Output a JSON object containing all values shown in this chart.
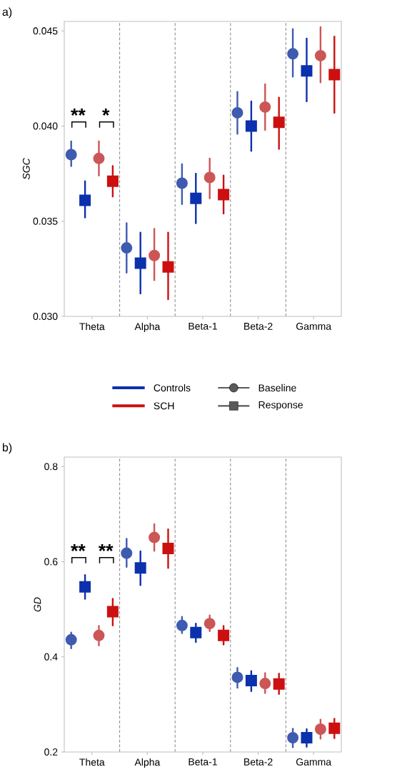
{
  "chart_data": [
    {
      "type": "scatter",
      "title": "a)",
      "ylabel": "SGC",
      "categories": [
        "Theta",
        "Alpha",
        "Beta-1",
        "Beta-2",
        "Gamma"
      ],
      "ylim": [
        0.03,
        0.0455
      ],
      "yticks": [
        {
          "value": 0.03,
          "label": "0.030"
        },
        {
          "value": 0.035,
          "label": "0.035"
        },
        {
          "value": 0.04,
          "label": "0.040"
        },
        {
          "value": 0.045,
          "label": "0.045"
        }
      ],
      "grid": "x",
      "series": [
        {
          "color": "#3f5bb0",
          "marker": "circle",
          "values": [
            0.0385,
            0.0336,
            0.037,
            0.0407,
            0.0438
          ],
          "errors": [
            [
              0.0379,
              0.0392
            ],
            [
              0.0323,
              0.0349
            ],
            [
              0.0359,
              0.038
            ],
            [
              0.0396,
              0.0418
            ],
            [
              0.0426,
              0.0451
            ]
          ]
        },
        {
          "color": "#0b31ad",
          "marker": "square",
          "values": [
            0.0361,
            0.0328,
            0.0362,
            0.04,
            0.0429
          ],
          "errors": [
            [
              0.0352,
              0.0371
            ],
            [
              0.0312,
              0.0344
            ],
            [
              0.0349,
              0.0375
            ],
            [
              0.0387,
              0.0413
            ],
            [
              0.0413,
              0.0446
            ]
          ]
        },
        {
          "color": "#cc5656",
          "marker": "circle",
          "values": [
            0.0383,
            0.0332,
            0.0373,
            0.041,
            0.0437
          ],
          "errors": [
            [
              0.0374,
              0.0392
            ],
            [
              0.0319,
              0.0346
            ],
            [
              0.0362,
              0.0383
            ],
            [
              0.0398,
              0.0422
            ],
            [
              0.0423,
              0.0452
            ]
          ]
        },
        {
          "color": "#cc1010",
          "marker": "square",
          "values": [
            0.0371,
            0.0326,
            0.0364,
            0.0402,
            0.0427
          ],
          "errors": [
            [
              0.0363,
              0.0379
            ],
            [
              0.0309,
              0.0344
            ],
            [
              0.0354,
              0.0374
            ],
            [
              0.0388,
              0.0415
            ],
            [
              0.0407,
              0.0447
            ]
          ]
        }
      ],
      "annotations": [
        "**",
        "*",
        "Controls",
        "SCH",
        "Baseline",
        "Response"
      ]
    },
    {
      "type": "scatter",
      "title": "b)",
      "ylabel": "GD",
      "categories": [
        "Theta",
        "Alpha",
        "Beta-1",
        "Beta-2",
        "Gamma"
      ],
      "ylim": [
        0.2,
        0.82
      ],
      "yticks": [
        0.2,
        0.4,
        0.6,
        0.8
      ],
      "grid": "x",
      "series": [
        {
          "color": "#3f5bb0",
          "marker": "circle",
          "values": [
            0.436,
            0.618,
            0.466,
            0.357,
            0.23
          ],
          "errors": [
            [
              0.418,
              0.451
            ],
            [
              0.589,
              0.648
            ],
            [
              0.45,
              0.484
            ],
            [
              0.335,
              0.377
            ],
            [
              0.21,
              0.249
            ]
          ]
        },
        {
          "color": "#0b31ad",
          "marker": "square",
          "values": [
            0.547,
            0.587,
            0.451,
            0.35,
            0.23
          ],
          "errors": [
            [
              0.522,
              0.572
            ],
            [
              0.551,
              0.622
            ],
            [
              0.431,
              0.47
            ],
            [
              0.328,
              0.37
            ],
            [
              0.211,
              0.248
            ]
          ]
        },
        {
          "color": "#cc5656",
          "marker": "circle",
          "values": [
            0.445,
            0.651,
            0.47,
            0.344,
            0.248
          ],
          "errors": [
            [
              0.424,
              0.465
            ],
            [
              0.623,
              0.679
            ],
            [
              0.454,
              0.487
            ],
            [
              0.324,
              0.366
            ],
            [
              0.228,
              0.268
            ]
          ]
        },
        {
          "color": "#cc1010",
          "marker": "square",
          "values": [
            0.495,
            0.628,
            0.445,
            0.343,
            0.25
          ],
          "errors": [
            [
              0.466,
              0.522
            ],
            [
              0.587,
              0.668
            ],
            [
              0.426,
              0.465
            ],
            [
              0.322,
              0.365
            ],
            [
              0.229,
              0.27
            ]
          ]
        }
      ],
      "annotations": [
        "**",
        "**"
      ]
    }
  ]
}
